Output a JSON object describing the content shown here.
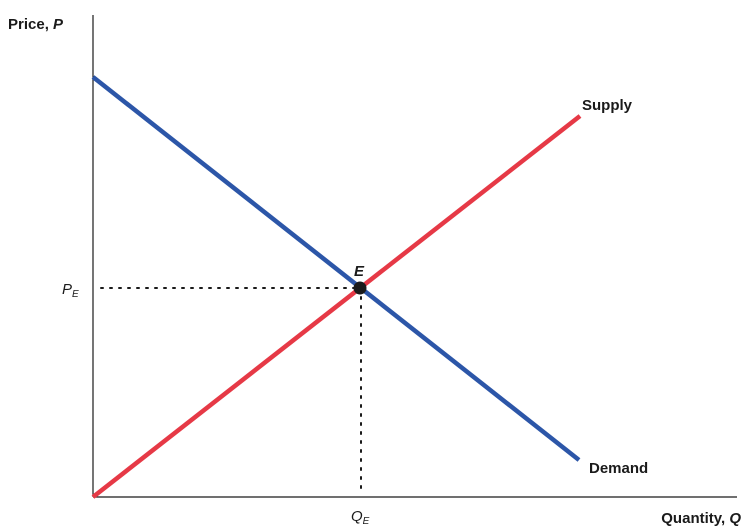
{
  "axes": {
    "y_label": "Price, ",
    "y_symbol": "P",
    "x_label": "Quantity, ",
    "x_symbol": "Q"
  },
  "curves": {
    "supply_label": "Supply",
    "demand_label": "Demand",
    "supply_color": "#e63946",
    "demand_color": "#2c56a8"
  },
  "equilibrium": {
    "point_label": "E",
    "price_label": "P",
    "price_subscript": "E",
    "quantity_label": "Q",
    "quantity_subscript": "E"
  }
}
